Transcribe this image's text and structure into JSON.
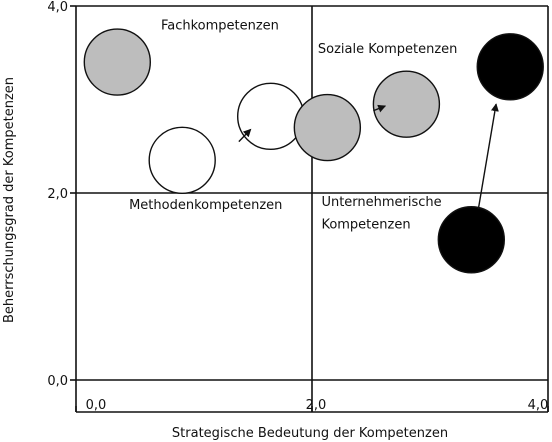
{
  "chart_data": {
    "type": "scatter",
    "xlabel": "Strategische Bedeutung der Kompetenzen",
    "ylabel": "Beherrschungsgrad der Kompetenzen",
    "xlim": [
      0,
      4
    ],
    "ylim": [
      0,
      4
    ],
    "x_ticks": [
      "0,0",
      "2,0",
      "4,0"
    ],
    "y_ticks": [
      "0,0",
      "2,0",
      "4,0"
    ],
    "quadrant_lines": {
      "x": 2.0,
      "y": 2.0
    },
    "points": [
      {
        "group": "fach",
        "x": 0.35,
        "y": 3.4,
        "fill": "#bdbdbd"
      },
      {
        "group": "methoden",
        "x": 0.9,
        "y": 2.35,
        "fill": "#ffffff"
      },
      {
        "group": "methoden",
        "x": 1.65,
        "y": 2.82,
        "fill": "#ffffff"
      },
      {
        "group": "sozial",
        "x": 2.13,
        "y": 2.7,
        "fill": "#bdbdbd"
      },
      {
        "group": "sozial",
        "x": 2.8,
        "y": 2.95,
        "fill": "#bdbdbd"
      },
      {
        "group": "unternehmerisch",
        "x": 3.35,
        "y": 1.5,
        "fill": "#000000"
      },
      {
        "group": "unternehmerisch",
        "x": 3.68,
        "y": 3.35,
        "fill": "#000000"
      }
    ],
    "arrows": [
      {
        "from": [
          1.38,
          2.55
        ],
        "to": [
          1.48,
          2.68
        ]
      },
      {
        "from": [
          2.52,
          2.88
        ],
        "to": [
          2.62,
          2.93
        ]
      },
      {
        "from": [
          3.41,
          1.83
        ],
        "to": [
          3.56,
          2.95
        ]
      }
    ],
    "annotations": [
      {
        "text": "Fachkompetenzen",
        "x": 0.72,
        "y": 3.75,
        "anchor": "start"
      },
      {
        "text": "Soziale Kompetenzen",
        "x": 2.05,
        "y": 3.5,
        "anchor": "start"
      },
      {
        "text": "Methodenkompetenzen",
        "x": 0.45,
        "y": 1.83,
        "anchor": "start"
      },
      {
        "text": "Unternehmerische",
        "x": 2.08,
        "y": 1.86,
        "anchor": "start"
      },
      {
        "text": "Kompetenzen",
        "x": 2.08,
        "y": 1.62,
        "anchor": "start"
      }
    ],
    "grid": false,
    "legend": "none"
  }
}
